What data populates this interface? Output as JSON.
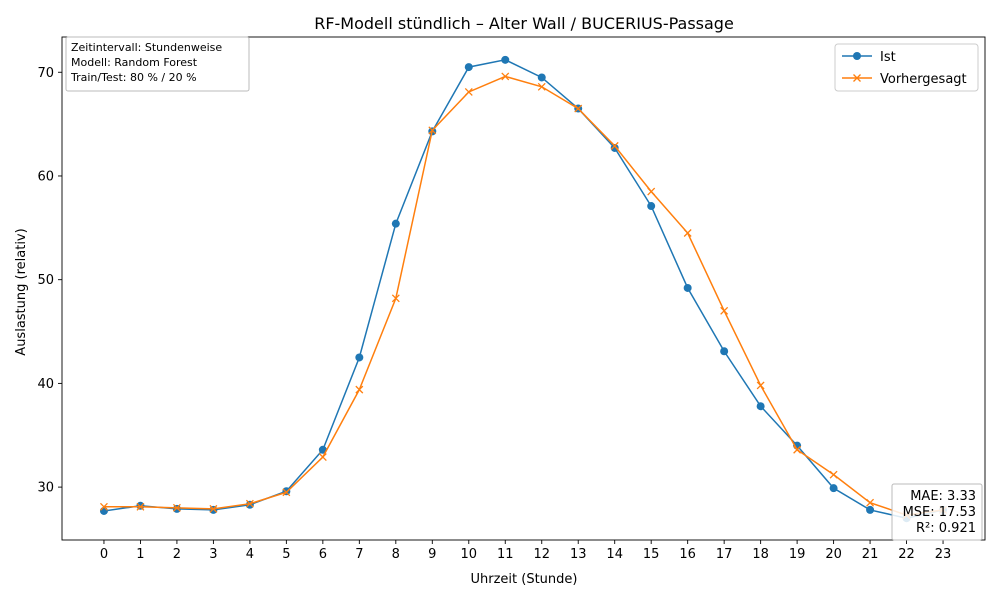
{
  "chart_data": {
    "type": "line",
    "title": "RF-Modell stündlich – Alter Wall / BUCERIUS-Passage",
    "xlabel": "Uhrzeit (Stunde)",
    "ylabel": "Auslastung (relativ)",
    "x": [
      0,
      1,
      2,
      3,
      4,
      5,
      6,
      7,
      8,
      9,
      10,
      11,
      12,
      13,
      14,
      15,
      16,
      17,
      18,
      19,
      20,
      21,
      22,
      23
    ],
    "x_tick_labels": [
      "0",
      "1",
      "2",
      "3",
      "4",
      "5",
      "6",
      "7",
      "8",
      "9",
      "10",
      "11",
      "12",
      "13",
      "14",
      "15",
      "16",
      "17",
      "18",
      "19",
      "20",
      "21",
      "22",
      "23"
    ],
    "y_ticks": [
      30,
      40,
      50,
      60,
      70
    ],
    "y_tick_labels": [
      "30",
      "40",
      "50",
      "60",
      "70"
    ],
    "ylim": [
      24.9,
      73.4
    ],
    "xlim": [
      -1.15,
      24.15
    ],
    "grid": false,
    "legend_position": "top-right",
    "series": [
      {
        "name": "Ist",
        "color": "#1f77b4",
        "marker": "circle",
        "values": [
          27.7,
          28.2,
          27.9,
          27.8,
          28.3,
          29.6,
          33.6,
          42.5,
          55.4,
          64.3,
          70.5,
          71.2,
          69.5,
          66.5,
          62.7,
          57.1,
          49.2,
          43.1,
          37.8,
          34.0,
          29.9,
          27.8,
          27.0,
          27.8
        ]
      },
      {
        "name": "Vorhergesagt",
        "color": "#ff7f0e",
        "marker": "x",
        "values": [
          28.1,
          28.1,
          28.0,
          27.9,
          28.4,
          29.5,
          32.9,
          39.4,
          48.2,
          64.4,
          68.1,
          69.6,
          68.6,
          66.5,
          62.9,
          58.5,
          54.5,
          47.0,
          39.8,
          33.6,
          31.2,
          28.5,
          27.3,
          27.8
        ]
      }
    ],
    "info_box": {
      "lines": [
        "Zeitintervall: Stundenweise",
        "Modell: Random Forest",
        "Train/Test: 80 % / 20 %"
      ],
      "position": "top-left"
    },
    "metrics_box": {
      "lines": [
        "MAE: 3.33",
        "MSE: 17.53",
        "R²: 0.921"
      ],
      "position": "bottom-right"
    }
  }
}
